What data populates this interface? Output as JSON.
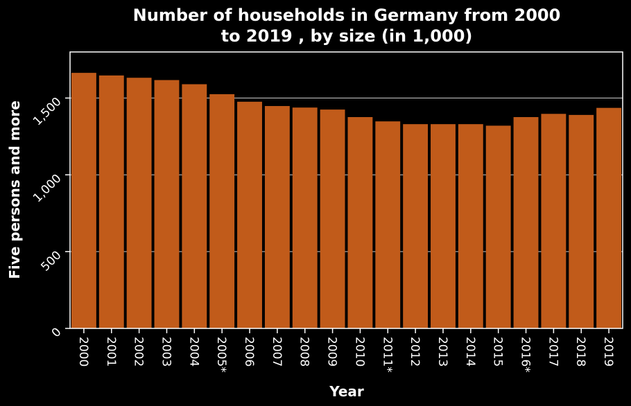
{
  "chart_data": {
    "type": "bar",
    "title_line1": "Number of households in Germany from 2000",
    "title_line2": "to 2019 , by size (in 1,000)",
    "xlabel": "Year",
    "ylabel": "Five persons and more",
    "categories": [
      "2000",
      "2001",
      "2002",
      "2003",
      "2004",
      "2005*",
      "2006",
      "2007",
      "2008",
      "2009",
      "2010",
      "2011*",
      "2012",
      "2013",
      "2014",
      "2015",
      "2016*",
      "2017",
      "2018",
      "2019"
    ],
    "values": [
      1664,
      1647,
      1632,
      1617,
      1590,
      1525,
      1476,
      1448,
      1438,
      1425,
      1376,
      1348,
      1330,
      1330,
      1330,
      1320,
      1376,
      1397,
      1390,
      1436
    ],
    "yticks": [
      0,
      500,
      1000,
      1500
    ],
    "ytick_labels": [
      "0",
      "500",
      "1,000",
      "1,500"
    ],
    "ylim": [
      0,
      1800
    ],
    "grid": true,
    "bar_color": "#c15b1a",
    "background_color": "#000000",
    "text_color": "#ffffff"
  }
}
